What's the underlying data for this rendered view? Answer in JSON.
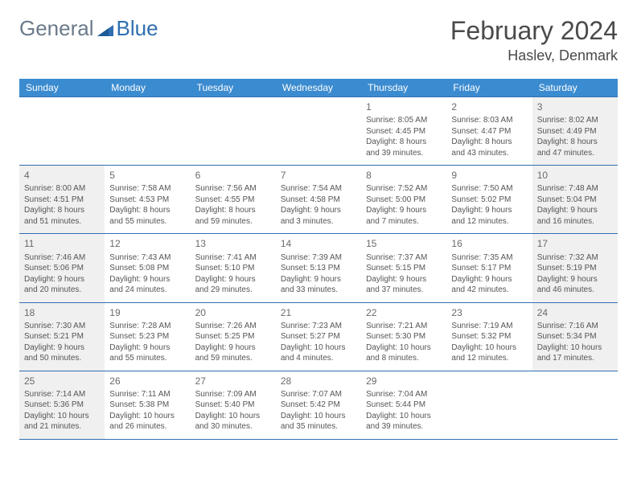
{
  "logo": {
    "text1": "General",
    "text2": "Blue"
  },
  "title": "February 2024",
  "location": "Haslev, Denmark",
  "colors": {
    "headerBg": "#3b8bd0",
    "headerText": "#ffffff",
    "border": "#2f6fb1",
    "shaded": "#f0f0f0",
    "textDark": "#4a4a4a",
    "textBody": "#555555",
    "logoGray": "#6b7a8a",
    "logoBlue": "#2f6fb1"
  },
  "weekdays": [
    "Sunday",
    "Monday",
    "Tuesday",
    "Wednesday",
    "Thursday",
    "Friday",
    "Saturday"
  ],
  "weeks": [
    [
      {
        "empty": true
      },
      {
        "empty": true
      },
      {
        "empty": true
      },
      {
        "empty": true
      },
      {
        "day": "1",
        "sunrise": "Sunrise: 8:05 AM",
        "sunset": "Sunset: 4:45 PM",
        "daylight": "Daylight: 8 hours and 39 minutes."
      },
      {
        "day": "2",
        "sunrise": "Sunrise: 8:03 AM",
        "sunset": "Sunset: 4:47 PM",
        "daylight": "Daylight: 8 hours and 43 minutes."
      },
      {
        "day": "3",
        "sunrise": "Sunrise: 8:02 AM",
        "sunset": "Sunset: 4:49 PM",
        "daylight": "Daylight: 8 hours and 47 minutes."
      }
    ],
    [
      {
        "day": "4",
        "sunrise": "Sunrise: 8:00 AM",
        "sunset": "Sunset: 4:51 PM",
        "daylight": "Daylight: 8 hours and 51 minutes."
      },
      {
        "day": "5",
        "sunrise": "Sunrise: 7:58 AM",
        "sunset": "Sunset: 4:53 PM",
        "daylight": "Daylight: 8 hours and 55 minutes."
      },
      {
        "day": "6",
        "sunrise": "Sunrise: 7:56 AM",
        "sunset": "Sunset: 4:55 PM",
        "daylight": "Daylight: 8 hours and 59 minutes."
      },
      {
        "day": "7",
        "sunrise": "Sunrise: 7:54 AM",
        "sunset": "Sunset: 4:58 PM",
        "daylight": "Daylight: 9 hours and 3 minutes."
      },
      {
        "day": "8",
        "sunrise": "Sunrise: 7:52 AM",
        "sunset": "Sunset: 5:00 PM",
        "daylight": "Daylight: 9 hours and 7 minutes."
      },
      {
        "day": "9",
        "sunrise": "Sunrise: 7:50 AM",
        "sunset": "Sunset: 5:02 PM",
        "daylight": "Daylight: 9 hours and 12 minutes."
      },
      {
        "day": "10",
        "sunrise": "Sunrise: 7:48 AM",
        "sunset": "Sunset: 5:04 PM",
        "daylight": "Daylight: 9 hours and 16 minutes."
      }
    ],
    [
      {
        "day": "11",
        "sunrise": "Sunrise: 7:46 AM",
        "sunset": "Sunset: 5:06 PM",
        "daylight": "Daylight: 9 hours and 20 minutes."
      },
      {
        "day": "12",
        "sunrise": "Sunrise: 7:43 AM",
        "sunset": "Sunset: 5:08 PM",
        "daylight": "Daylight: 9 hours and 24 minutes."
      },
      {
        "day": "13",
        "sunrise": "Sunrise: 7:41 AM",
        "sunset": "Sunset: 5:10 PM",
        "daylight": "Daylight: 9 hours and 29 minutes."
      },
      {
        "day": "14",
        "sunrise": "Sunrise: 7:39 AM",
        "sunset": "Sunset: 5:13 PM",
        "daylight": "Daylight: 9 hours and 33 minutes."
      },
      {
        "day": "15",
        "sunrise": "Sunrise: 7:37 AM",
        "sunset": "Sunset: 5:15 PM",
        "daylight": "Daylight: 9 hours and 37 minutes."
      },
      {
        "day": "16",
        "sunrise": "Sunrise: 7:35 AM",
        "sunset": "Sunset: 5:17 PM",
        "daylight": "Daylight: 9 hours and 42 minutes."
      },
      {
        "day": "17",
        "sunrise": "Sunrise: 7:32 AM",
        "sunset": "Sunset: 5:19 PM",
        "daylight": "Daylight: 9 hours and 46 minutes."
      }
    ],
    [
      {
        "day": "18",
        "sunrise": "Sunrise: 7:30 AM",
        "sunset": "Sunset: 5:21 PM",
        "daylight": "Daylight: 9 hours and 50 minutes."
      },
      {
        "day": "19",
        "sunrise": "Sunrise: 7:28 AM",
        "sunset": "Sunset: 5:23 PM",
        "daylight": "Daylight: 9 hours and 55 minutes."
      },
      {
        "day": "20",
        "sunrise": "Sunrise: 7:26 AM",
        "sunset": "Sunset: 5:25 PM",
        "daylight": "Daylight: 9 hours and 59 minutes."
      },
      {
        "day": "21",
        "sunrise": "Sunrise: 7:23 AM",
        "sunset": "Sunset: 5:27 PM",
        "daylight": "Daylight: 10 hours and 4 minutes."
      },
      {
        "day": "22",
        "sunrise": "Sunrise: 7:21 AM",
        "sunset": "Sunset: 5:30 PM",
        "daylight": "Daylight: 10 hours and 8 minutes."
      },
      {
        "day": "23",
        "sunrise": "Sunrise: 7:19 AM",
        "sunset": "Sunset: 5:32 PM",
        "daylight": "Daylight: 10 hours and 12 minutes."
      },
      {
        "day": "24",
        "sunrise": "Sunrise: 7:16 AM",
        "sunset": "Sunset: 5:34 PM",
        "daylight": "Daylight: 10 hours and 17 minutes."
      }
    ],
    [
      {
        "day": "25",
        "sunrise": "Sunrise: 7:14 AM",
        "sunset": "Sunset: 5:36 PM",
        "daylight": "Daylight: 10 hours and 21 minutes."
      },
      {
        "day": "26",
        "sunrise": "Sunrise: 7:11 AM",
        "sunset": "Sunset: 5:38 PM",
        "daylight": "Daylight: 10 hours and 26 minutes."
      },
      {
        "day": "27",
        "sunrise": "Sunrise: 7:09 AM",
        "sunset": "Sunset: 5:40 PM",
        "daylight": "Daylight: 10 hours and 30 minutes."
      },
      {
        "day": "28",
        "sunrise": "Sunrise: 7:07 AM",
        "sunset": "Sunset: 5:42 PM",
        "daylight": "Daylight: 10 hours and 35 minutes."
      },
      {
        "day": "29",
        "sunrise": "Sunrise: 7:04 AM",
        "sunset": "Sunset: 5:44 PM",
        "daylight": "Daylight: 10 hours and 39 minutes."
      },
      {
        "empty": true
      },
      {
        "empty": true
      }
    ]
  ],
  "shadedWeekends": true
}
